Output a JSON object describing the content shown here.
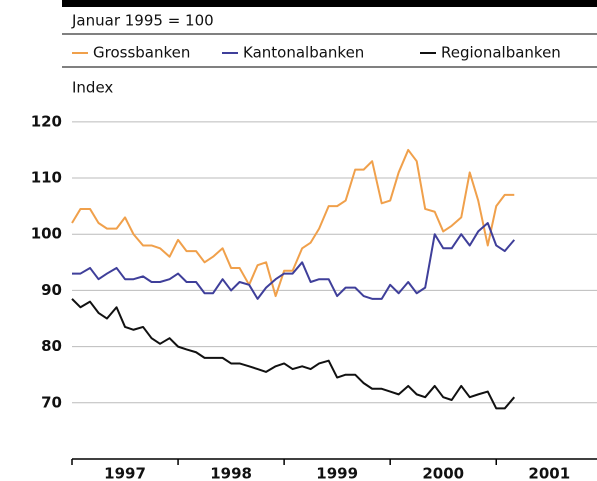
{
  "chart_data": {
    "type": "line",
    "subtitle": "Januar 1995 = 100",
    "y_label": "Index",
    "x": [
      1997.0,
      1997.08,
      1997.17,
      1997.25,
      1997.33,
      1997.42,
      1997.5,
      1997.58,
      1997.67,
      1997.75,
      1997.83,
      1997.92,
      1998.0,
      1998.08,
      1998.17,
      1998.25,
      1998.33,
      1998.42,
      1998.5,
      1998.58,
      1998.67,
      1998.75,
      1998.83,
      1998.92,
      1999.0,
      1999.08,
      1999.17,
      1999.25,
      1999.33,
      1999.42,
      1999.5,
      1999.58,
      1999.67,
      1999.75,
      1999.83,
      1999.92,
      2000.0,
      2000.08,
      2000.17,
      2000.25,
      2000.33,
      2000.42,
      2000.5,
      2000.58,
      2000.67,
      2000.75,
      2000.83,
      2000.92,
      2001.0,
      2001.08,
      2001.17
    ],
    "series": [
      {
        "name": "Grossbanken",
        "color": "#f0a04b",
        "values": [
          102,
          104.5,
          104.5,
          102,
          101,
          101,
          103,
          100,
          98,
          98,
          97.5,
          96,
          99,
          97,
          97,
          95,
          96,
          97.5,
          94,
          94,
          91,
          94.5,
          95,
          89,
          93.5,
          93.5,
          97.5,
          98.5,
          101,
          105,
          105,
          106,
          111.5,
          111.5,
          113,
          105.5,
          106,
          111,
          115,
          113,
          104.5,
          104,
          100.5,
          101.5,
          103,
          111,
          106,
          98,
          105,
          107,
          107
        ]
      },
      {
        "name": "Kantonalbanken",
        "color": "#3f3f9a",
        "values": [
          93,
          93,
          94,
          92,
          93,
          94,
          92,
          92,
          92.5,
          91.5,
          91.5,
          92,
          93,
          91.5,
          91.5,
          89.5,
          89.5,
          92,
          90,
          91.5,
          91,
          88.5,
          90.5,
          92,
          93,
          93,
          95,
          91.5,
          92,
          92,
          89,
          90.5,
          90.5,
          89,
          88.5,
          88.5,
          91,
          89.5,
          91.5,
          89.5,
          90.5,
          100,
          97.5,
          97.5,
          100,
          98,
          100.5,
          102,
          98,
          97,
          99
        ]
      },
      {
        "name": "Regionalbanken",
        "color": "#111111",
        "values": [
          88.5,
          87,
          88,
          86,
          85,
          87,
          83.5,
          83,
          83.5,
          81.5,
          80.5,
          81.5,
          80,
          79.5,
          79,
          78,
          78,
          78,
          77,
          77,
          76.5,
          76,
          75.5,
          76.5,
          77,
          76,
          76.5,
          76,
          77,
          77.5,
          74.5,
          75,
          75,
          73.5,
          72.5,
          72.5,
          72,
          71.5,
          73,
          71.5,
          71,
          73,
          71,
          70.5,
          73,
          71,
          71.5,
          72,
          69,
          69,
          71
        ]
      }
    ],
    "xlim": [
      1997,
      2001.95
    ],
    "xticks": [
      1997,
      1998,
      1999,
      2000,
      2001
    ],
    "ylim": [
      60,
      123
    ],
    "yticks": [
      70,
      80,
      90,
      100,
      110,
      120
    ],
    "grid": true
  }
}
